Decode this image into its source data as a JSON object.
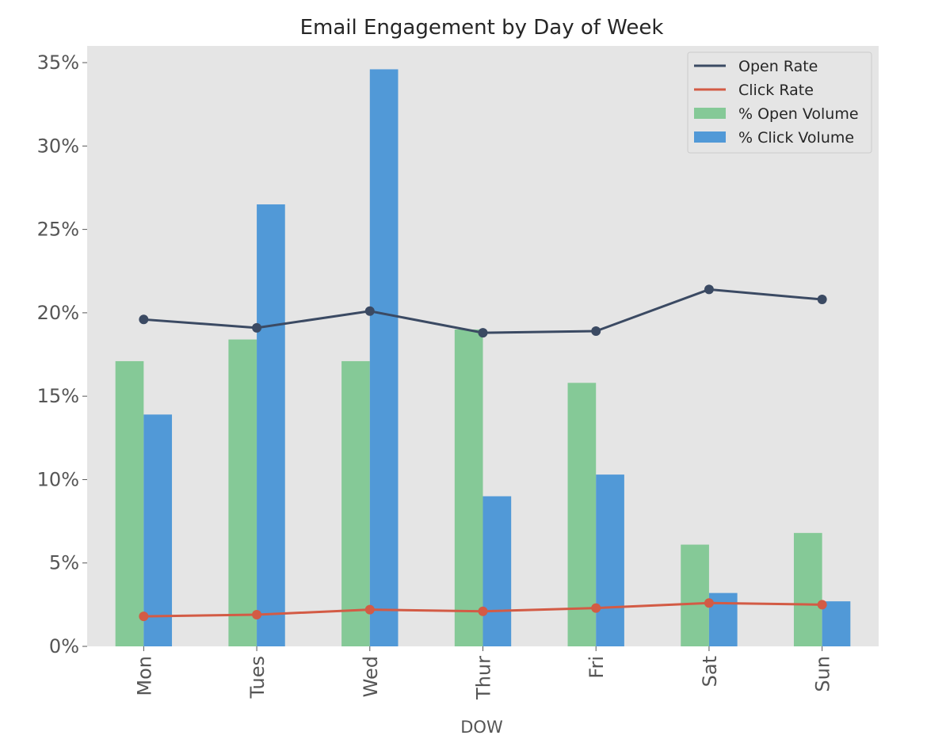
{
  "chart_data": {
    "type": "bar",
    "title": "Email Engagement by Day of Week",
    "xlabel": "DOW",
    "ylabel": "",
    "ylim": [
      0,
      36
    ],
    "yticks": [
      0,
      5,
      10,
      15,
      20,
      25,
      30,
      35
    ],
    "ytick_labels": [
      "0%",
      "5%",
      "10%",
      "15%",
      "20%",
      "25%",
      "30%",
      "35%"
    ],
    "categories": [
      "Mon",
      "Tues",
      "Wed",
      "Thur",
      "Fri",
      "Sat",
      "Sun"
    ],
    "bar_series": [
      {
        "name": "% Open Volume",
        "color": "#85c997",
        "values": [
          17.1,
          18.4,
          17.1,
          19.0,
          15.8,
          6.1,
          6.8
        ]
      },
      {
        "name": "% Click Volume",
        "color": "#5199d7",
        "values": [
          13.9,
          26.5,
          34.6,
          9.0,
          10.3,
          3.2,
          2.7
        ]
      }
    ],
    "line_series": [
      {
        "name": "Open Rate",
        "color": "#3b4a63",
        "values": [
          19.6,
          19.1,
          20.1,
          18.8,
          18.9,
          21.4,
          20.8
        ]
      },
      {
        "name": "Click Rate",
        "color": "#d35b45",
        "values": [
          1.8,
          1.9,
          2.2,
          2.1,
          2.3,
          2.6,
          2.5
        ]
      }
    ],
    "legend": [
      "Open Rate",
      "Click Rate",
      "% Open Volume",
      "% Click Volume"
    ],
    "legend_position": "top-right",
    "grid": false,
    "plot_background": "#e5e5e5"
  }
}
